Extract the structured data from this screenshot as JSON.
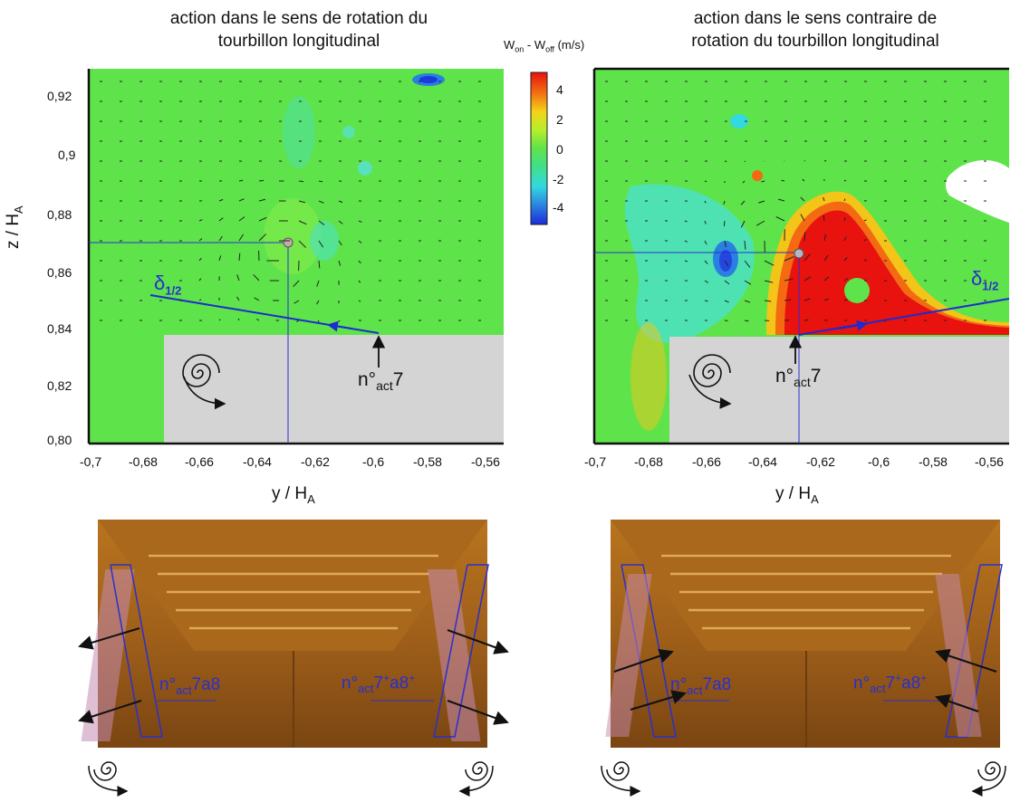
{
  "figure": {
    "left_title_line1": "action dans le sens de rotation du",
    "left_title_line2": "tourbillon longitudinal",
    "right_title_line1": "action dans le sens contraire de",
    "right_title_line2": "rotation du tourbillon longitudinal",
    "colorbar_label_main": "W",
    "colorbar_label_on": "on",
    "colorbar_label_mid": " - W",
    "colorbar_label_off": "off",
    "colorbar_label_unit": " (m/s)",
    "colorbar_ticks": [
      "4",
      "2",
      "0",
      "-2",
      "-4"
    ],
    "colors": {
      "colormap": [
        "#1a2bd9",
        "#2a9de0",
        "#33e0d8",
        "#3fe05a",
        "#6ee93a",
        "#c8ee2c",
        "#f3c518",
        "#f36a12",
        "#e8120f"
      ],
      "panel_field": "#5fe34a",
      "obstacle": "#d4d4d4",
      "annotation_blue": "#2a2fd0"
    }
  },
  "left_panel": {
    "ylabel_main": "z / H",
    "ylabel_sub": "A",
    "xlabel_main": "y / H",
    "xlabel_sub": "A",
    "xticks": [
      "-0,7",
      "-0,68",
      "-0,66",
      "-0,64",
      "-0,62",
      "-0,6",
      "-0,58",
      "-0,56"
    ],
    "yticks": [
      "0,92",
      "0,9",
      "0,88",
      "0,86",
      "0,84",
      "0,82",
      "0,80"
    ],
    "delta_label": "δ",
    "delta_sub": "1/2",
    "act_label_pre": "n°",
    "act_label_sub": "act",
    "act_label_post": "7"
  },
  "right_panel": {
    "xlabel_main": "y / H",
    "xlabel_sub": "A",
    "xticks": [
      "-0,7",
      "-0,68",
      "-0,66",
      "-0,64",
      "-0,62",
      "-0,6",
      "-0,58",
      "-0,56"
    ],
    "delta_label": "δ",
    "delta_sub": "1/2",
    "act_label_pre": "n°",
    "act_label_sub": "act",
    "act_label_post": "7"
  },
  "bottom_left": {
    "label_a_pre": "n°",
    "label_a_sub": "act",
    "label_a_post": "7a8",
    "label_b_pre": "n°",
    "label_b_sub": "act",
    "label_b_post_1": "7",
    "label_b_sup_1": "+",
    "label_b_post_2": "a8",
    "label_b_sup_2": "+"
  },
  "bottom_right": {
    "label_a_pre": "n°",
    "label_a_sub": "act",
    "label_a_post": "7a8",
    "label_b_pre": "n°",
    "label_b_sub": "act",
    "label_b_post_1": "7",
    "label_b_sup_1": "+",
    "label_b_post_2": "a8",
    "label_b_sup_2": "+"
  }
}
